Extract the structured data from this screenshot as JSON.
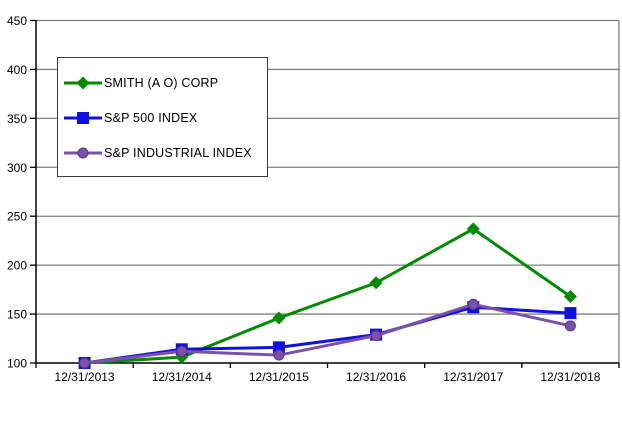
{
  "chart_data": {
    "type": "line",
    "title": "",
    "xlabel": "",
    "ylabel": "",
    "categories": [
      "12/31/2013",
      "12/31/2014",
      "12/31/2015",
      "12/31/2016",
      "12/31/2017",
      "12/31/2018"
    ],
    "series": [
      {
        "name": "SMITH (A O) CORP",
        "values": [
          100,
          106,
          146,
          182,
          237,
          168
        ],
        "color": "#008A00",
        "marker": "diamond"
      },
      {
        "name": "S&P 500 INDEX",
        "values": [
          100,
          114,
          116,
          129,
          157,
          151
        ],
        "color": "#1010E0",
        "marker": "square"
      },
      {
        "name": "S&P INDUSTRIAL INDEX",
        "values": [
          100,
          112,
          108,
          128,
          160,
          138
        ],
        "color": "#7B50A8",
        "marker": "circle",
        "marker_stroke": "#5A3A7E"
      }
    ],
    "y_ticks": [
      100,
      150,
      200,
      250,
      300,
      350,
      400,
      450
    ],
    "ylim": [
      100,
      450
    ],
    "grid": true,
    "grid_color": "#808080",
    "axis_color": "#000000",
    "plot_border_color": "#808080",
    "background_color": "#FFFFFF",
    "legend_position": "upper-left"
  }
}
